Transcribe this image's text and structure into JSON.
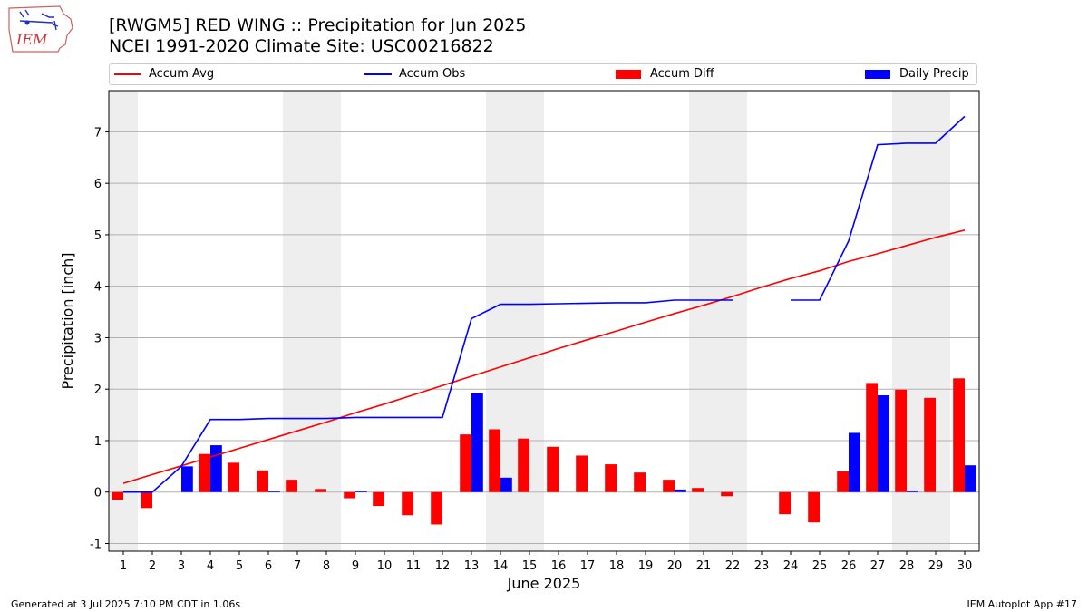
{
  "logo_text": "IEM",
  "title_line1": "[RWGM5] RED WING :: Precipitation for Jun 2025",
  "title_line2": "NCEI 1991-2020 Climate Site: USC00216822",
  "footer_left": "Generated at 3 Jul 2025 7:10 PM CDT in 1.06s",
  "footer_right": "IEM Autoplot App #17",
  "colors": {
    "avg": "#ff0000",
    "obs": "#0000ff",
    "diff": "#ff0000",
    "daily": "#0000ff",
    "weekend": "#eeeeee",
    "grid": "#b0b0b0"
  },
  "chart_data": {
    "type": "bar",
    "xlabel": "June 2025",
    "ylabel": "Precipitation [inch]",
    "xlim": [
      0.5,
      30.5
    ],
    "ylim": [
      -1.15,
      7.8
    ],
    "yticks": [
      -1,
      0,
      1,
      2,
      3,
      4,
      5,
      6,
      7
    ],
    "grid": "horizontal",
    "legend_position": "top",
    "days": [
      1,
      2,
      3,
      4,
      5,
      6,
      7,
      8,
      9,
      10,
      11,
      12,
      13,
      14,
      15,
      16,
      17,
      18,
      19,
      20,
      21,
      22,
      23,
      24,
      25,
      26,
      27,
      28,
      29,
      30
    ],
    "weekend_days": [
      1,
      7,
      8,
      14,
      15,
      21,
      22,
      28,
      29
    ],
    "series": [
      {
        "name": "Accum Avg",
        "kind": "line",
        "values": [
          0.17,
          0.34,
          0.51,
          0.68,
          0.85,
          1.02,
          1.19,
          1.36,
          1.54,
          1.71,
          1.89,
          2.07,
          2.25,
          2.43,
          2.61,
          2.79,
          2.96,
          3.13,
          3.3,
          3.47,
          3.63,
          3.8,
          3.98,
          4.15,
          4.3,
          4.48,
          4.63,
          4.79,
          4.95,
          5.09
        ]
      },
      {
        "name": "Accum Obs",
        "kind": "line",
        "values": [
          0.0,
          0.0,
          0.5,
          1.41,
          1.41,
          1.43,
          1.43,
          1.43,
          1.45,
          1.45,
          1.45,
          1.45,
          3.37,
          3.65,
          3.65,
          3.66,
          3.67,
          3.68,
          3.68,
          3.73,
          3.73,
          3.73,
          null,
          3.73,
          3.73,
          4.88,
          6.75,
          6.78,
          6.78,
          7.3
        ]
      },
      {
        "name": "Accum Diff",
        "kind": "bar",
        "values": [
          -0.15,
          -0.31,
          0.0,
          0.74,
          0.57,
          0.42,
          0.24,
          0.06,
          -0.12,
          -0.27,
          -0.45,
          -0.63,
          1.12,
          1.22,
          1.04,
          0.88,
          0.71,
          0.54,
          0.38,
          0.24,
          0.08,
          -0.08,
          0.0,
          -0.43,
          -0.59,
          0.4,
          2.12,
          1.99,
          1.83,
          2.21
        ]
      },
      {
        "name": "Daily Precip",
        "kind": "bar",
        "values": [
          0.0,
          0.0,
          0.5,
          0.91,
          0.0,
          0.02,
          0.0,
          0.0,
          0.02,
          0.0,
          0.0,
          0.0,
          1.92,
          0.28,
          0.0,
          0.0,
          0.0,
          0.0,
          0.0,
          0.05,
          0.0,
          0.0,
          0.0,
          0.0,
          0.0,
          1.15,
          1.88,
          0.03,
          0.0,
          0.52
        ]
      }
    ]
  }
}
